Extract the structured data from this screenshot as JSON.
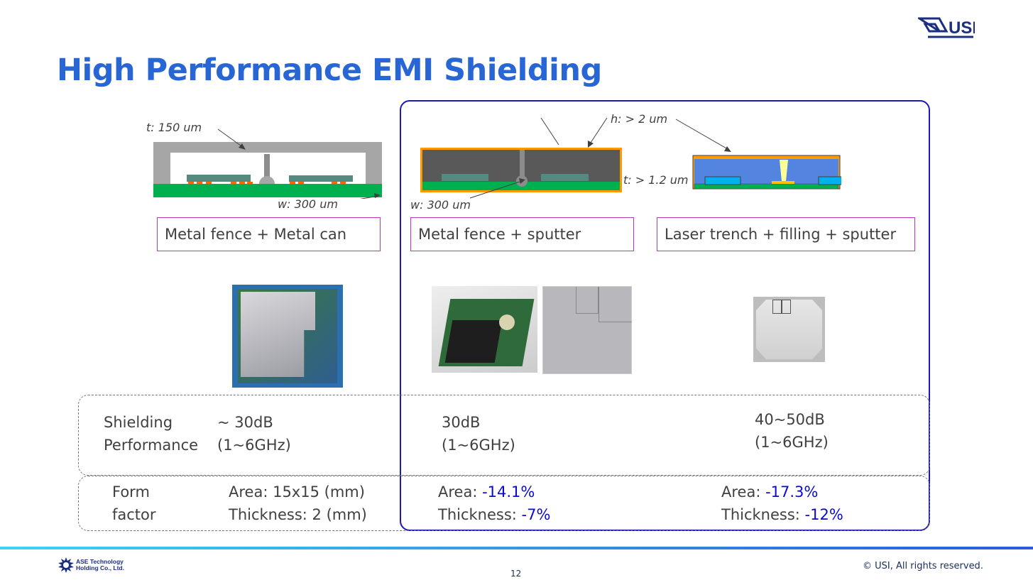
{
  "title": "High Performance EMI Shielding",
  "logo": {
    "text": "USI",
    "color": "#1a2f80"
  },
  "diagrams": {
    "can": {
      "t_label": "t: 150 um",
      "w_label": "w: 300 um"
    },
    "sputter": {
      "w_label": "w: 300 um",
      "h_label": "h: > 2 um",
      "t_label": "t: > 1.2 um"
    }
  },
  "methods": [
    "Metal fence + Metal can",
    "Metal fence + sputter",
    "Laser trench + filling + sputter"
  ],
  "shielding": {
    "label": [
      "Shielding",
      "Performance"
    ],
    "values": [
      [
        "~ 30dB",
        "(1~6GHz)"
      ],
      [
        "30dB",
        "(1~6GHz)"
      ],
      [
        "40~50dB",
        "(1~6GHz)"
      ]
    ]
  },
  "form_factor": {
    "label": [
      "Form",
      "factor"
    ],
    "base": [
      "Area: 15x15 (mm)",
      "Thickness: 2 (mm)"
    ],
    "values": [
      {
        "area_label": "Area: ",
        "area": "-14.1%",
        "thk_label": "Thickness: ",
        "thk": "-7%"
      },
      {
        "area_label": "Area: ",
        "area": "-17.3%",
        "thk_label": "Thickness: ",
        "thk": "-12%"
      }
    ]
  },
  "colors": {
    "title": "#2866d6",
    "highlight_border": "#1a1ab8",
    "delta": "#0a0ad8"
  },
  "footer": {
    "company": [
      "ASE Technology",
      "Holding Co., Ltd."
    ],
    "page": "12",
    "copyright": "© USI, All rights reserved."
  }
}
